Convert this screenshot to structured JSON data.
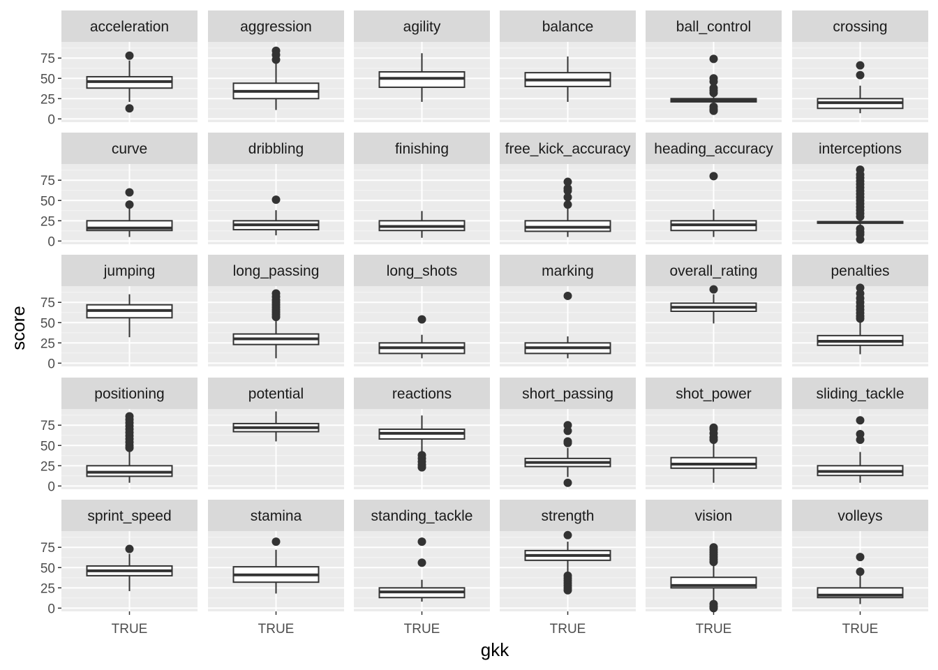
{
  "chart_data": {
    "type": "boxplot",
    "layout": "facet_wrap",
    "ncol": 6,
    "xlabel": "gkk",
    "ylabel": "score",
    "x_categories": [
      "TRUE"
    ],
    "y_ticks": [
      0,
      25,
      50,
      75
    ],
    "ylim": [
      -4,
      95
    ],
    "grid": true,
    "panels": [
      {
        "name": "acceleration",
        "whisker_low": 21,
        "q1": 38,
        "median": 46,
        "q3": 52,
        "whisker_high": 72,
        "outliers": [
          78,
          13
        ]
      },
      {
        "name": "aggression",
        "whisker_low": 11,
        "q1": 25,
        "median": 34,
        "q3": 44,
        "whisker_high": 70,
        "outliers": [
          84,
          79,
          73
        ]
      },
      {
        "name": "agility",
        "whisker_low": 21,
        "q1": 39,
        "median": 50,
        "q3": 58,
        "whisker_high": 81,
        "outliers": []
      },
      {
        "name": "balance",
        "whisker_low": 21,
        "q1": 40,
        "median": 48,
        "q3": 57,
        "whisker_high": 77,
        "outliers": []
      },
      {
        "name": "ball_control",
        "whisker_low": 21,
        "q1": 21,
        "median": 23,
        "q3": 25,
        "whisker_high": 27,
        "outliers": [
          74,
          50,
          46,
          38,
          35,
          32,
          15,
          12,
          10
        ]
      },
      {
        "name": "crossing",
        "whisker_low": 7,
        "q1": 13,
        "median": 20,
        "q3": 25,
        "whisker_high": 41,
        "outliers": [
          66,
          54
        ]
      },
      {
        "name": "curve",
        "whisker_low": 5,
        "q1": 13,
        "median": 16,
        "q3": 25,
        "whisker_high": 40,
        "outliers": [
          60,
          45
        ]
      },
      {
        "name": "dribbling",
        "whisker_low": 7,
        "q1": 14,
        "median": 20,
        "q3": 25,
        "whisker_high": 38,
        "outliers": [
          51
        ]
      },
      {
        "name": "finishing",
        "whisker_low": 4,
        "q1": 13,
        "median": 18,
        "q3": 25,
        "whisker_high": 37,
        "outliers": []
      },
      {
        "name": "free_kick_accuracy",
        "whisker_low": 5,
        "q1": 12,
        "median": 17,
        "q3": 25,
        "whisker_high": 40,
        "outliers": [
          73,
          65,
          62,
          54,
          45
        ]
      },
      {
        "name": "heading_accuracy",
        "whisker_low": 5,
        "q1": 13,
        "median": 20,
        "q3": 25,
        "whisker_high": 39,
        "outliers": [
          80
        ]
      },
      {
        "name": "interceptions",
        "whisker_low": 20,
        "q1": 22,
        "median": 23,
        "q3": 24,
        "whisker_high": 26,
        "outliers": [
          88,
          82,
          78,
          74,
          70,
          66,
          62,
          58,
          54,
          50,
          46,
          42,
          38,
          34,
          30,
          15,
          11,
          8,
          2
        ]
      },
      {
        "name": "jumping",
        "whisker_low": 32,
        "q1": 56,
        "median": 65,
        "q3": 72,
        "whisker_high": 85,
        "outliers": []
      },
      {
        "name": "long_passing",
        "whisker_low": 6,
        "q1": 23,
        "median": 30,
        "q3": 36,
        "whisker_high": 55,
        "outliers": [
          86,
          82,
          78,
          75,
          72,
          69,
          66,
          63,
          60,
          57
        ]
      },
      {
        "name": "long_shots",
        "whisker_low": 6,
        "q1": 12,
        "median": 19,
        "q3": 25,
        "whisker_high": 35,
        "outliers": [
          54
        ]
      },
      {
        "name": "marking",
        "whisker_low": 6,
        "q1": 12,
        "median": 19,
        "q3": 25,
        "whisker_high": 33,
        "outliers": [
          83
        ]
      },
      {
        "name": "overall_rating",
        "whisker_low": 49,
        "q1": 64,
        "median": 69,
        "q3": 74,
        "whisker_high": 85,
        "outliers": [
          91
        ]
      },
      {
        "name": "penalties",
        "whisker_low": 11,
        "q1": 22,
        "median": 27,
        "q3": 34,
        "whisker_high": 52,
        "outliers": [
          93,
          86,
          80,
          75,
          70,
          66,
          62,
          58,
          55
        ]
      },
      {
        "name": "positioning",
        "whisker_low": 4,
        "q1": 12,
        "median": 17,
        "q3": 25,
        "whisker_high": 44,
        "outliers": [
          86,
          82,
          78,
          74,
          70,
          66,
          62,
          58,
          54,
          50,
          47
        ]
      },
      {
        "name": "potential",
        "whisker_low": 55,
        "q1": 67,
        "median": 72,
        "q3": 77,
        "whisker_high": 92,
        "outliers": []
      },
      {
        "name": "reactions",
        "whisker_low": 41,
        "q1": 58,
        "median": 65,
        "q3": 70,
        "whisker_high": 87,
        "outliers": [
          38,
          34,
          30,
          26,
          23
        ]
      },
      {
        "name": "short_passing",
        "whisker_low": 11,
        "q1": 24,
        "median": 29,
        "q3": 34,
        "whisker_high": 47,
        "outliers": [
          75,
          68,
          55,
          53,
          4
        ]
      },
      {
        "name": "shot_power",
        "whisker_low": 4,
        "q1": 22,
        "median": 27,
        "q3": 35,
        "whisker_high": 52,
        "outliers": [
          72,
          70,
          65,
          60,
          57
        ]
      },
      {
        "name": "sliding_tackle",
        "whisker_low": 4,
        "q1": 13,
        "median": 18,
        "q3": 25,
        "whisker_high": 42,
        "outliers": [
          81,
          64,
          57
        ]
      },
      {
        "name": "sprint_speed",
        "whisker_low": 21,
        "q1": 40,
        "median": 46,
        "q3": 52,
        "whisker_high": 67,
        "outliers": [
          73
        ]
      },
      {
        "name": "stamina",
        "whisker_low": 18,
        "q1": 32,
        "median": 41,
        "q3": 51,
        "whisker_high": 72,
        "outliers": [
          82
        ]
      },
      {
        "name": "standing_tackle",
        "whisker_low": 8,
        "q1": 13,
        "median": 20,
        "q3": 25,
        "whisker_high": 35,
        "outliers": [
          82,
          56
        ]
      },
      {
        "name": "strength",
        "whisker_low": 41,
        "q1": 59,
        "median": 65,
        "q3": 71,
        "whisker_high": 82,
        "outliers": [
          90,
          40,
          37,
          34,
          31,
          28,
          25,
          22
        ]
      },
      {
        "name": "vision",
        "whisker_low": 10,
        "q1": 25,
        "median": 28,
        "q3": 38,
        "whisker_high": 56,
        "outliers": [
          75,
          72,
          69,
          66,
          63,
          60,
          57,
          5,
          2,
          0
        ]
      },
      {
        "name": "volleys",
        "whisker_low": 5,
        "q1": 13,
        "median": 16,
        "q3": 25,
        "whisker_high": 40,
        "outliers": [
          63,
          45
        ]
      }
    ]
  }
}
